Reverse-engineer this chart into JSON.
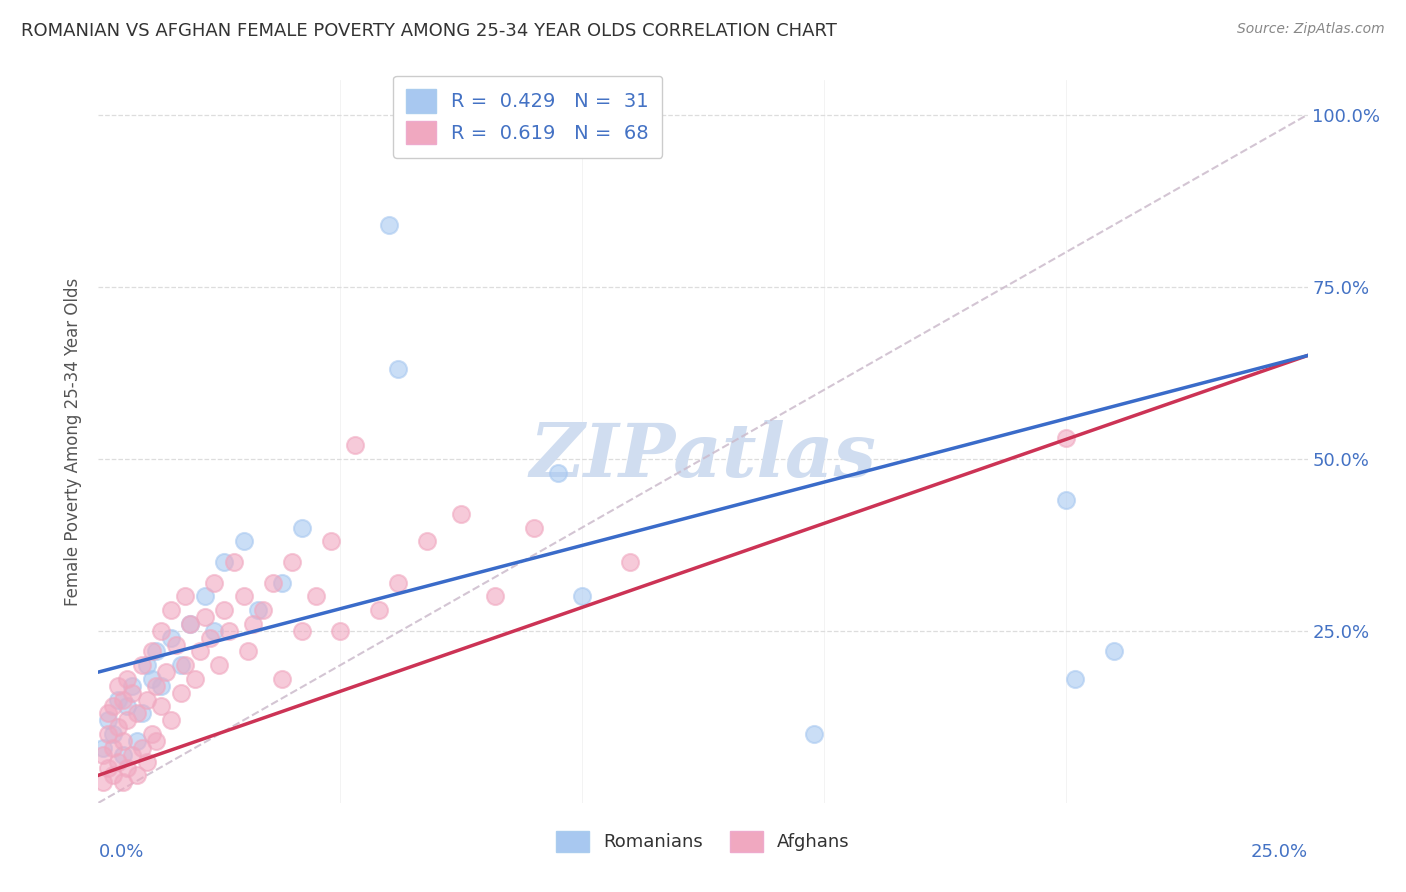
{
  "title": "ROMANIAN VS AFGHAN FEMALE POVERTY AMONG 25-34 YEAR OLDS CORRELATION CHART",
  "source": "Source: ZipAtlas.com",
  "ylabel": "Female Poverty Among 25-34 Year Olds",
  "ytick_labels": [
    "100.0%",
    "75.0%",
    "50.0%",
    "25.0%"
  ],
  "ytick_values": [
    1.0,
    0.75,
    0.5,
    0.25
  ],
  "xlim": [
    0.0,
    0.25
  ],
  "ylim": [
    0.0,
    1.05
  ],
  "romanian_R": 0.429,
  "romanian_N": 31,
  "afghan_R": 0.619,
  "afghan_N": 68,
  "romanian_color": "#a8c8f0",
  "afghan_color": "#f0a8c0",
  "romanian_line_color": "#3a6bc9",
  "afghan_line_color": "#cc3355",
  "ref_line_color": "#ccbbcc",
  "watermark": "ZIPatlas",
  "watermark_color": "#d0ddf0",
  "background_color": "#ffffff",
  "title_color": "#333333",
  "axis_tick_color": "#4472c4",
  "grid_color": "#dddddd",
  "romanian_line_intercept": 0.19,
  "romanian_line_slope": 1.84,
  "afghan_line_intercept": 0.04,
  "afghan_line_slope": 2.44,
  "ref_line_intercept": 0.0,
  "ref_line_slope": 4.0,
  "romanians_x": [
    0.001,
    0.002,
    0.003,
    0.004,
    0.005,
    0.006,
    0.007,
    0.008,
    0.009,
    0.01,
    0.011,
    0.012,
    0.013,
    0.015,
    0.017,
    0.019,
    0.022,
    0.024,
    0.026,
    0.03,
    0.033,
    0.038,
    0.042,
    0.06,
    0.062,
    0.095,
    0.1,
    0.148,
    0.2,
    0.202,
    0.21
  ],
  "romanians_y": [
    0.08,
    0.12,
    0.1,
    0.15,
    0.07,
    0.14,
    0.17,
    0.09,
    0.13,
    0.2,
    0.18,
    0.22,
    0.17,
    0.24,
    0.2,
    0.26,
    0.3,
    0.25,
    0.35,
    0.38,
    0.28,
    0.32,
    0.4,
    0.84,
    0.63,
    0.48,
    0.3,
    0.1,
    0.44,
    0.18,
    0.22
  ],
  "afghans_x": [
    0.001,
    0.001,
    0.002,
    0.002,
    0.002,
    0.003,
    0.003,
    0.003,
    0.004,
    0.004,
    0.004,
    0.005,
    0.005,
    0.005,
    0.006,
    0.006,
    0.006,
    0.007,
    0.007,
    0.008,
    0.008,
    0.009,
    0.009,
    0.01,
    0.01,
    0.011,
    0.011,
    0.012,
    0.012,
    0.013,
    0.013,
    0.014,
    0.015,
    0.015,
    0.016,
    0.017,
    0.018,
    0.018,
    0.019,
    0.02,
    0.021,
    0.022,
    0.023,
    0.024,
    0.025,
    0.026,
    0.027,
    0.028,
    0.03,
    0.031,
    0.032,
    0.034,
    0.036,
    0.038,
    0.04,
    0.042,
    0.045,
    0.048,
    0.05,
    0.053,
    0.058,
    0.062,
    0.068,
    0.075,
    0.082,
    0.09,
    0.11,
    0.2
  ],
  "afghans_y": [
    0.03,
    0.07,
    0.05,
    0.1,
    0.13,
    0.04,
    0.08,
    0.14,
    0.06,
    0.11,
    0.17,
    0.03,
    0.09,
    0.15,
    0.05,
    0.12,
    0.18,
    0.07,
    0.16,
    0.04,
    0.13,
    0.08,
    0.2,
    0.06,
    0.15,
    0.1,
    0.22,
    0.09,
    0.17,
    0.14,
    0.25,
    0.19,
    0.12,
    0.28,
    0.23,
    0.16,
    0.2,
    0.3,
    0.26,
    0.18,
    0.22,
    0.27,
    0.24,
    0.32,
    0.2,
    0.28,
    0.25,
    0.35,
    0.3,
    0.22,
    0.26,
    0.28,
    0.32,
    0.18,
    0.35,
    0.25,
    0.3,
    0.38,
    0.25,
    0.52,
    0.28,
    0.32,
    0.38,
    0.42,
    0.3,
    0.4,
    0.35,
    0.53
  ]
}
